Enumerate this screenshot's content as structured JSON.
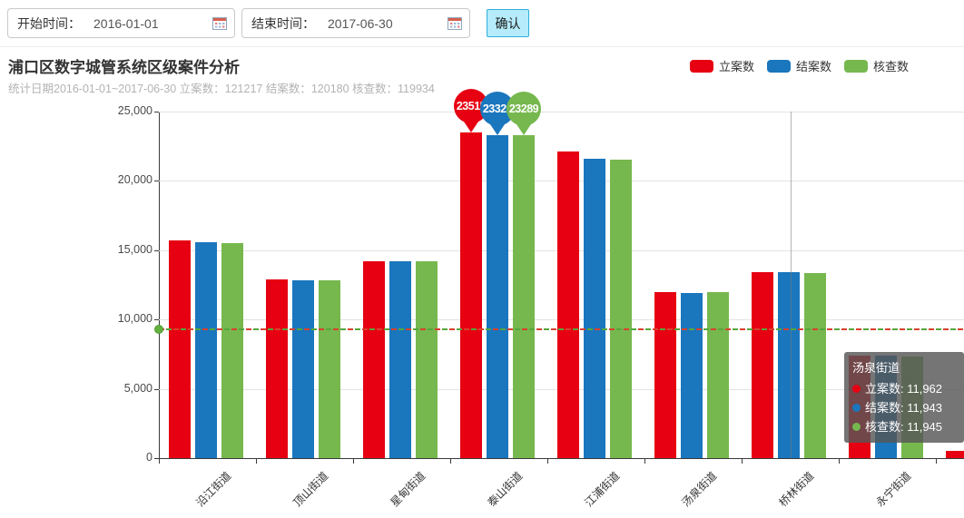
{
  "toolbar": {
    "start_label": "开始时间：",
    "start_value": "2016-01-01",
    "end_label": "结束时间：",
    "end_value": "2017-06-30",
    "confirm_label": "确认"
  },
  "header": {
    "title": "浦口区数字城管系统区级案件分析",
    "subtitle": "统计日期2016-01-01~2017-06-30 立案数：121217 结案数：120180 核查数：119934"
  },
  "legend": [
    {
      "label": "立案数",
      "color": "#e60012"
    },
    {
      "label": "结案数",
      "color": "#1a76bd"
    },
    {
      "label": "核查数",
      "color": "#76b84e"
    }
  ],
  "chart_data": {
    "type": "bar",
    "title": "浦口区数字城管系统区级案件分析",
    "categories": [
      "沿江街道",
      "顶山街道",
      "星甸街道",
      "泰山街道",
      "江浦街道",
      "汤泉街道",
      "桥林街道",
      "永宁街道",
      ""
    ],
    "series": [
      {
        "name": "立案数",
        "color": "#e60012",
        "values": [
          15700,
          12900,
          14230,
          23515,
          22150,
          11962,
          13420,
          7400,
          550
        ]
      },
      {
        "name": "结案数",
        "color": "#1a76bd",
        "values": [
          15550,
          12840,
          14200,
          23326,
          21600,
          11943,
          13400,
          7380,
          null
        ]
      },
      {
        "name": "核查数",
        "color": "#76b84e",
        "values": [
          15520,
          12820,
          14170,
          23289,
          21550,
          11945,
          13380,
          7350,
          null
        ]
      }
    ],
    "ylim": [
      0,
      25000
    ],
    "yticks": [
      {
        "value": 0,
        "label": "0"
      },
      {
        "value": 5000,
        "label": "5,000"
      },
      {
        "value": 10000,
        "label": "10,000"
      },
      {
        "value": 15000,
        "label": "15,000"
      },
      {
        "value": 20000,
        "label": "20,000"
      },
      {
        "value": 25000,
        "label": "25,000"
      }
    ],
    "grid": true,
    "legend_position": "top-right",
    "average_line": 9324,
    "crosshair_x": 871,
    "pin_category_index": 3,
    "pins": [
      {
        "value": "23515",
        "color": "#e60012"
      },
      {
        "value": "23326",
        "color": "#1a76bd"
      },
      {
        "value": "23289",
        "color": "#76b84e"
      }
    ]
  },
  "tooltip": {
    "title": "汤泉街道",
    "rows": [
      {
        "label": "立案数",
        "value": "11,962",
        "color": "#e60012"
      },
      {
        "label": "结案数",
        "value": "11,943",
        "color": "#1a76bd"
      },
      {
        "label": "核查数",
        "value": "11,945",
        "color": "#76b84e"
      }
    ]
  }
}
